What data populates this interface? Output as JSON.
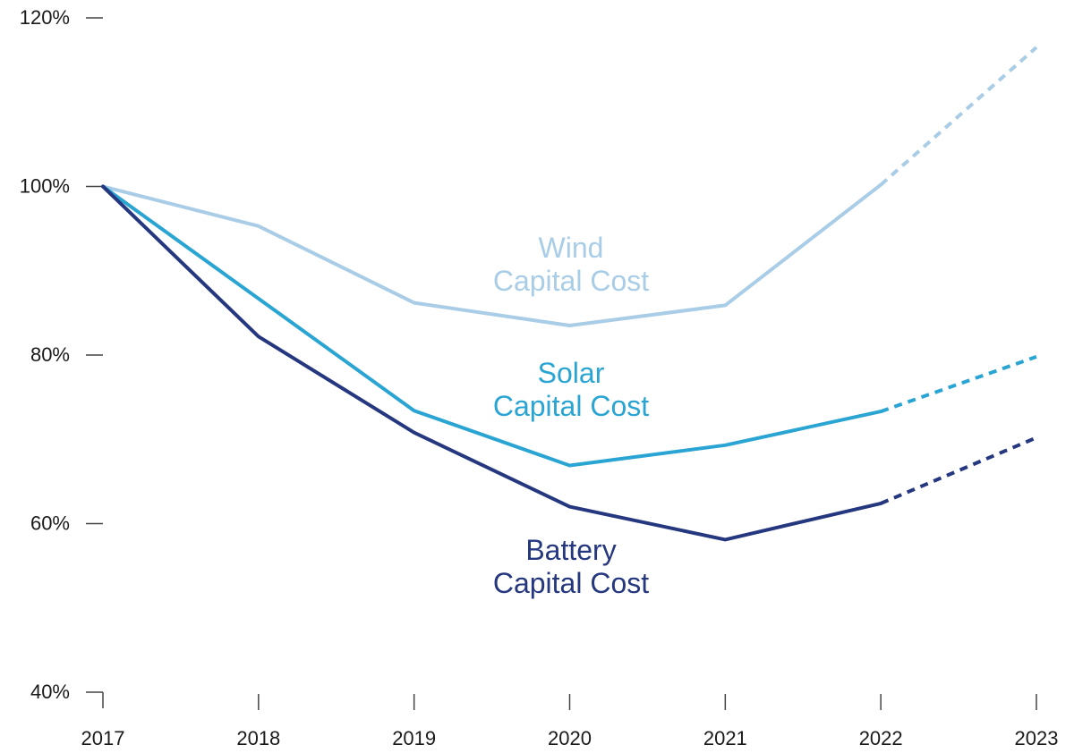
{
  "chart_data": {
    "type": "line",
    "x": [
      "2017",
      "2018",
      "2019",
      "2020",
      "2021",
      "2022",
      "2023"
    ],
    "ylim": [
      40,
      120
    ],
    "yticks": [
      "40%",
      "60%",
      "80%",
      "100%",
      "120%"
    ],
    "ytick_values": [
      40,
      60,
      80,
      100,
      120
    ],
    "grid": false,
    "series": [
      {
        "name": "Wind Capital Cost",
        "label_lines": [
          "Wind",
          "Capital Cost"
        ],
        "color": "#a9cde6",
        "values": [
          100,
          95.3,
          86.2,
          83.5,
          85.9,
          100.2,
          116.5
        ],
        "projected_from_index": 5
      },
      {
        "name": "Solar Capital Cost",
        "label_lines": [
          "Solar",
          "Capital Cost"
        ],
        "color": "#2aa5d3",
        "values": [
          100,
          86.7,
          73.4,
          66.9,
          69.3,
          73.3,
          79.8
        ],
        "projected_from_index": 5
      },
      {
        "name": "Battery Capital Cost",
        "label_lines": [
          "Battery",
          "Capital Cost"
        ],
        "color": "#25377f",
        "values": [
          100,
          82.2,
          70.8,
          62.0,
          58.1,
          62.4,
          70.2
        ],
        "projected_from_index": 5
      }
    ]
  }
}
